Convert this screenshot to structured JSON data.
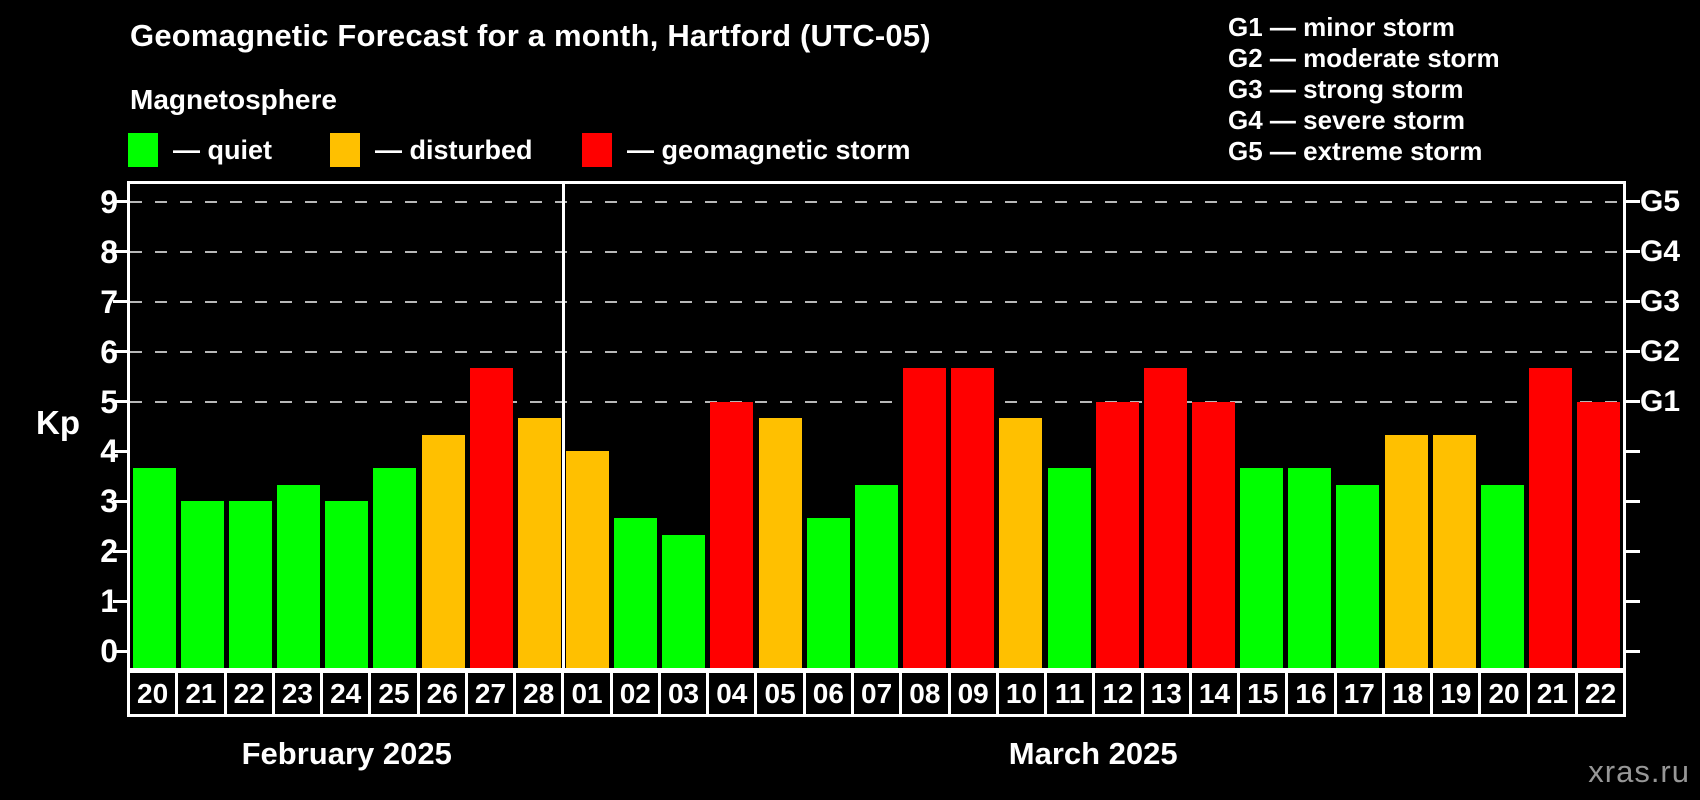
{
  "header": {
    "title": "Geomagnetic Forecast for a month, Hartford (UTC-05)",
    "subtitle": "Magnetosphere"
  },
  "legend": {
    "items": [
      {
        "label": "— quiet",
        "condition": "quiet",
        "color": "#00ff00"
      },
      {
        "label": "— disturbed",
        "condition": "disturbed",
        "color": "#ffc000"
      },
      {
        "label": "— geomagnetic storm",
        "condition": "storm",
        "color": "#ff0000"
      }
    ]
  },
  "g_scale": {
    "lines": [
      "G1 — minor storm",
      "G2 — moderate storm",
      "G3 — strong storm",
      "G4 — severe storm",
      "G5 — extreme storm"
    ]
  },
  "watermark": "xras.ru",
  "chart_data": {
    "type": "bar",
    "ylabel": "Kp",
    "ylim": [
      0,
      9
    ],
    "yticks": [
      0,
      1,
      2,
      3,
      4,
      5,
      6,
      7,
      8,
      9
    ],
    "gridlines_at_kp": [
      5,
      6,
      7,
      8,
      9
    ],
    "grid_color": "#b8b8b8",
    "axis_color": "#ffffff",
    "right_axis_labels": [
      {
        "kp": 5,
        "label": "G1"
      },
      {
        "kp": 6,
        "label": "G2"
      },
      {
        "kp": 7,
        "label": "G3"
      },
      {
        "kp": 8,
        "label": "G4"
      },
      {
        "kp": 9,
        "label": "G5"
      }
    ],
    "condition_colors": {
      "quiet": "#00ff00",
      "disturbed": "#ffc000",
      "storm": "#ff0000"
    },
    "months": [
      {
        "label": "February 2025",
        "short": "feb",
        "start_index": 0,
        "count": 9
      },
      {
        "label": "March 2025",
        "short": "mar",
        "start_index": 9,
        "count": 22
      }
    ],
    "bars": [
      {
        "day": "20",
        "month": "feb",
        "kp": 3.67,
        "condition": "quiet"
      },
      {
        "day": "21",
        "month": "feb",
        "kp": 3.0,
        "condition": "quiet"
      },
      {
        "day": "22",
        "month": "feb",
        "kp": 3.0,
        "condition": "quiet"
      },
      {
        "day": "23",
        "month": "feb",
        "kp": 3.33,
        "condition": "quiet"
      },
      {
        "day": "24",
        "month": "feb",
        "kp": 3.0,
        "condition": "quiet"
      },
      {
        "day": "25",
        "month": "feb",
        "kp": 3.67,
        "condition": "quiet"
      },
      {
        "day": "26",
        "month": "feb",
        "kp": 4.33,
        "condition": "disturbed"
      },
      {
        "day": "27",
        "month": "feb",
        "kp": 5.67,
        "condition": "storm"
      },
      {
        "day": "28",
        "month": "feb",
        "kp": 4.67,
        "condition": "disturbed"
      },
      {
        "day": "01",
        "month": "mar",
        "kp": 4.0,
        "condition": "disturbed"
      },
      {
        "day": "02",
        "month": "mar",
        "kp": 2.67,
        "condition": "quiet"
      },
      {
        "day": "03",
        "month": "mar",
        "kp": 2.33,
        "condition": "quiet"
      },
      {
        "day": "04",
        "month": "mar",
        "kp": 5.0,
        "condition": "storm"
      },
      {
        "day": "05",
        "month": "mar",
        "kp": 4.67,
        "condition": "disturbed"
      },
      {
        "day": "06",
        "month": "mar",
        "kp": 2.67,
        "condition": "quiet"
      },
      {
        "day": "07",
        "month": "mar",
        "kp": 3.33,
        "condition": "quiet"
      },
      {
        "day": "08",
        "month": "mar",
        "kp": 5.67,
        "condition": "storm"
      },
      {
        "day": "09",
        "month": "mar",
        "kp": 5.67,
        "condition": "storm"
      },
      {
        "day": "10",
        "month": "mar",
        "kp": 4.67,
        "condition": "disturbed"
      },
      {
        "day": "11",
        "month": "mar",
        "kp": 3.67,
        "condition": "quiet"
      },
      {
        "day": "12",
        "month": "mar",
        "kp": 5.0,
        "condition": "storm"
      },
      {
        "day": "13",
        "month": "mar",
        "kp": 5.67,
        "condition": "storm"
      },
      {
        "day": "14",
        "month": "mar",
        "kp": 5.0,
        "condition": "storm"
      },
      {
        "day": "15",
        "month": "mar",
        "kp": 3.67,
        "condition": "quiet"
      },
      {
        "day": "16",
        "month": "mar",
        "kp": 3.67,
        "condition": "quiet"
      },
      {
        "day": "17",
        "month": "mar",
        "kp": 3.33,
        "condition": "quiet"
      },
      {
        "day": "18",
        "month": "mar",
        "kp": 4.33,
        "condition": "disturbed"
      },
      {
        "day": "19",
        "month": "mar",
        "kp": 4.33,
        "condition": "disturbed"
      },
      {
        "day": "20",
        "month": "mar",
        "kp": 3.33,
        "condition": "quiet"
      },
      {
        "day": "21",
        "month": "mar",
        "kp": 5.67,
        "condition": "storm"
      },
      {
        "day": "22",
        "month": "mar",
        "kp": 5.0,
        "condition": "storm"
      }
    ]
  }
}
